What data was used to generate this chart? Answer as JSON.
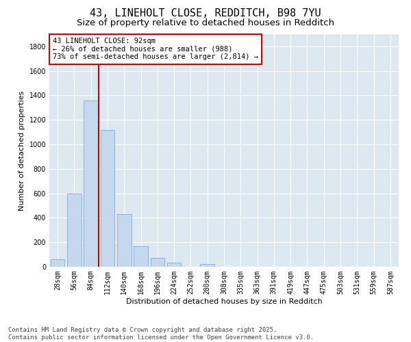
{
  "title1": "43, LINEHOLT CLOSE, REDDITCH, B98 7YU",
  "title2": "Size of property relative to detached houses in Redditch",
  "xlabel": "Distribution of detached houses by size in Redditch",
  "ylabel": "Number of detached properties",
  "bar_labels": [
    "28sqm",
    "56sqm",
    "84sqm",
    "112sqm",
    "140sqm",
    "168sqm",
    "196sqm",
    "224sqm",
    "252sqm",
    "280sqm",
    "308sqm",
    "335sqm",
    "363sqm",
    "391sqm",
    "419sqm",
    "447sqm",
    "475sqm",
    "503sqm",
    "531sqm",
    "559sqm",
    "587sqm"
  ],
  "bar_values": [
    60,
    600,
    1360,
    1120,
    430,
    170,
    70,
    35,
    0,
    20,
    0,
    0,
    0,
    0,
    0,
    0,
    0,
    0,
    0,
    0,
    0
  ],
  "bar_color": "#c5d8ed",
  "bar_edge_color": "#7aadd4",
  "vline_color": "#cc0000",
  "vline_x": 2.45,
  "annotation_text": "43 LINEHOLT CLOSE: 92sqm\n← 26% of detached houses are smaller (988)\n73% of semi-detached houses are larger (2,814) →",
  "annotation_box_color": "#ffffff",
  "annotation_box_edge": "#cc0000",
  "ylim": [
    0,
    1900
  ],
  "yticks": [
    0,
    200,
    400,
    600,
    800,
    1000,
    1200,
    1400,
    1600,
    1800
  ],
  "bg_color": "#dde8f0",
  "footnote": "Contains HM Land Registry data © Crown copyright and database right 2025.\nContains public sector information licensed under the Open Government Licence v3.0.",
  "title1_fontsize": 11,
  "title2_fontsize": 9.5,
  "xlabel_fontsize": 8,
  "ylabel_fontsize": 8,
  "tick_fontsize": 7,
  "annot_fontsize": 7.5,
  "footnote_fontsize": 6.5
}
